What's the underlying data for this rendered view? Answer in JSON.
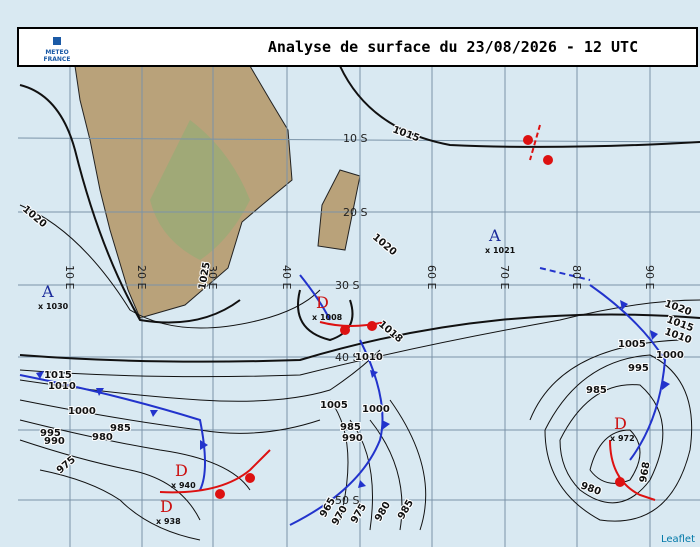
{
  "header": {
    "title": "Analyse de surface du 23/08/2026 - 12 UTC",
    "logo": [
      "METEO",
      "FRANCE"
    ]
  },
  "grid": {
    "latitudes": [
      "10 S",
      "20 S",
      "30 S",
      "40 S",
      "50 S"
    ],
    "longitudes": [
      "10 E",
      "20 E",
      "30 E",
      "40 E",
      "60 E",
      "70 E",
      "80 E",
      "90 E"
    ]
  },
  "isobar_labels": [
    "1015",
    "1020",
    "1025",
    "1020",
    "1015",
    "1010",
    "1000",
    "995",
    "990",
    "980",
    "985",
    "975",
    "1018",
    "1010",
    "1005",
    "1000",
    "985",
    "990",
    "965",
    "970",
    "975",
    "980",
    "985",
    "1020",
    "1015",
    "1010",
    "1005",
    "1000",
    "995",
    "985",
    "980",
    "968"
  ],
  "pressure_centers": [
    {
      "symbol": "A",
      "label": "x 1030"
    },
    {
      "symbol": "A",
      "label": "x 1021"
    },
    {
      "symbol": "D",
      "label": "x 1008"
    },
    {
      "symbol": "D",
      "label": "x 940"
    },
    {
      "symbol": "D",
      "label": "x 938"
    },
    {
      "symbol": "D",
      "label": "x 972"
    }
  ],
  "attribution": "Leaflet"
}
